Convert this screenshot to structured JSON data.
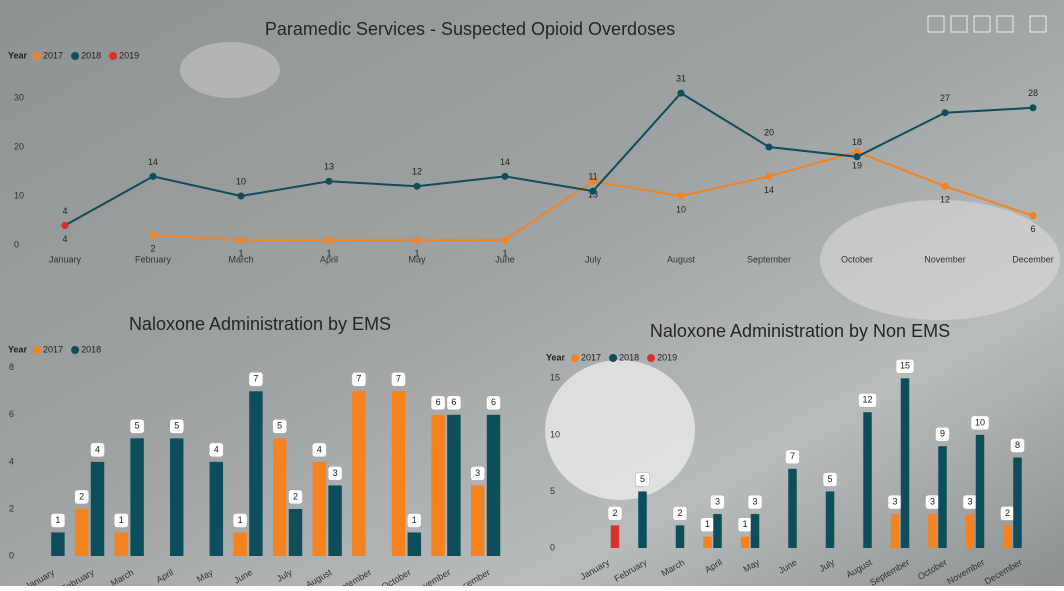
{
  "chart_data": [
    {
      "type": "line",
      "title": "Paramedic Services -  Suspected Opioid Overdoses",
      "legend_title": "Year",
      "categories": [
        "January",
        "February",
        "March",
        "April",
        "May",
        "June",
        "July",
        "August",
        "September",
        "October",
        "November",
        "December"
      ],
      "series": [
        {
          "name": "2017",
          "color": "#f5821f",
          "values": [
            null,
            2,
            1,
            1,
            1,
            1,
            13,
            10,
            14,
            19,
            12,
            6
          ]
        },
        {
          "name": "2018",
          "color": "#0e4d5c",
          "values": [
            4,
            14,
            10,
            13,
            12,
            14,
            11,
            31,
            20,
            18,
            27,
            28
          ]
        },
        {
          "name": "2019",
          "color": "#d8312b",
          "values": [
            4,
            null,
            null,
            null,
            null,
            null,
            null,
            null,
            null,
            null,
            null,
            null
          ]
        }
      ],
      "ylim": [
        -2,
        36
      ],
      "yticks": [
        0,
        10,
        20,
        30
      ]
    },
    {
      "type": "bar",
      "title": "Naloxone Administration by EMS",
      "legend_title": "Year",
      "categories": [
        "January",
        "February",
        "March",
        "April",
        "May",
        "June",
        "July",
        "August",
        "September",
        "October",
        "November",
        "December"
      ],
      "series": [
        {
          "name": "2017",
          "color": "#f5821f",
          "values": [
            null,
            2,
            1,
            null,
            null,
            1,
            5,
            4,
            7,
            7,
            6,
            3
          ]
        },
        {
          "name": "2018",
          "color": "#0e4d5c",
          "values": [
            1,
            4,
            5,
            5,
            4,
            7,
            2,
            3,
            null,
            1,
            6,
            6
          ]
        }
      ],
      "ylim": [
        0,
        8.5
      ],
      "yticks": [
        0,
        2,
        4,
        6,
        8
      ]
    },
    {
      "type": "bar",
      "title": "Naloxone Administration by Non EMS",
      "legend_title": "Year",
      "categories": [
        "January",
        "February",
        "March",
        "April",
        "May",
        "June",
        "July",
        "August",
        "September",
        "October",
        "November",
        "December"
      ],
      "series": [
        {
          "name": "2017",
          "color": "#f5821f",
          "values": [
            null,
            null,
            null,
            1,
            1,
            null,
            null,
            null,
            3,
            3,
            3,
            2
          ]
        },
        {
          "name": "2018",
          "color": "#0e4d5c",
          "values": [
            null,
            5,
            2,
            3,
            3,
            7,
            5,
            12,
            15,
            9,
            10,
            8
          ]
        },
        {
          "name": "2019",
          "color": "#d8312b",
          "values": [
            2,
            null,
            null,
            null,
            null,
            null,
            null,
            null,
            null,
            null,
            null,
            null
          ]
        }
      ],
      "ylim": [
        0,
        16
      ],
      "yticks": [
        0,
        5,
        10,
        15
      ]
    }
  ]
}
